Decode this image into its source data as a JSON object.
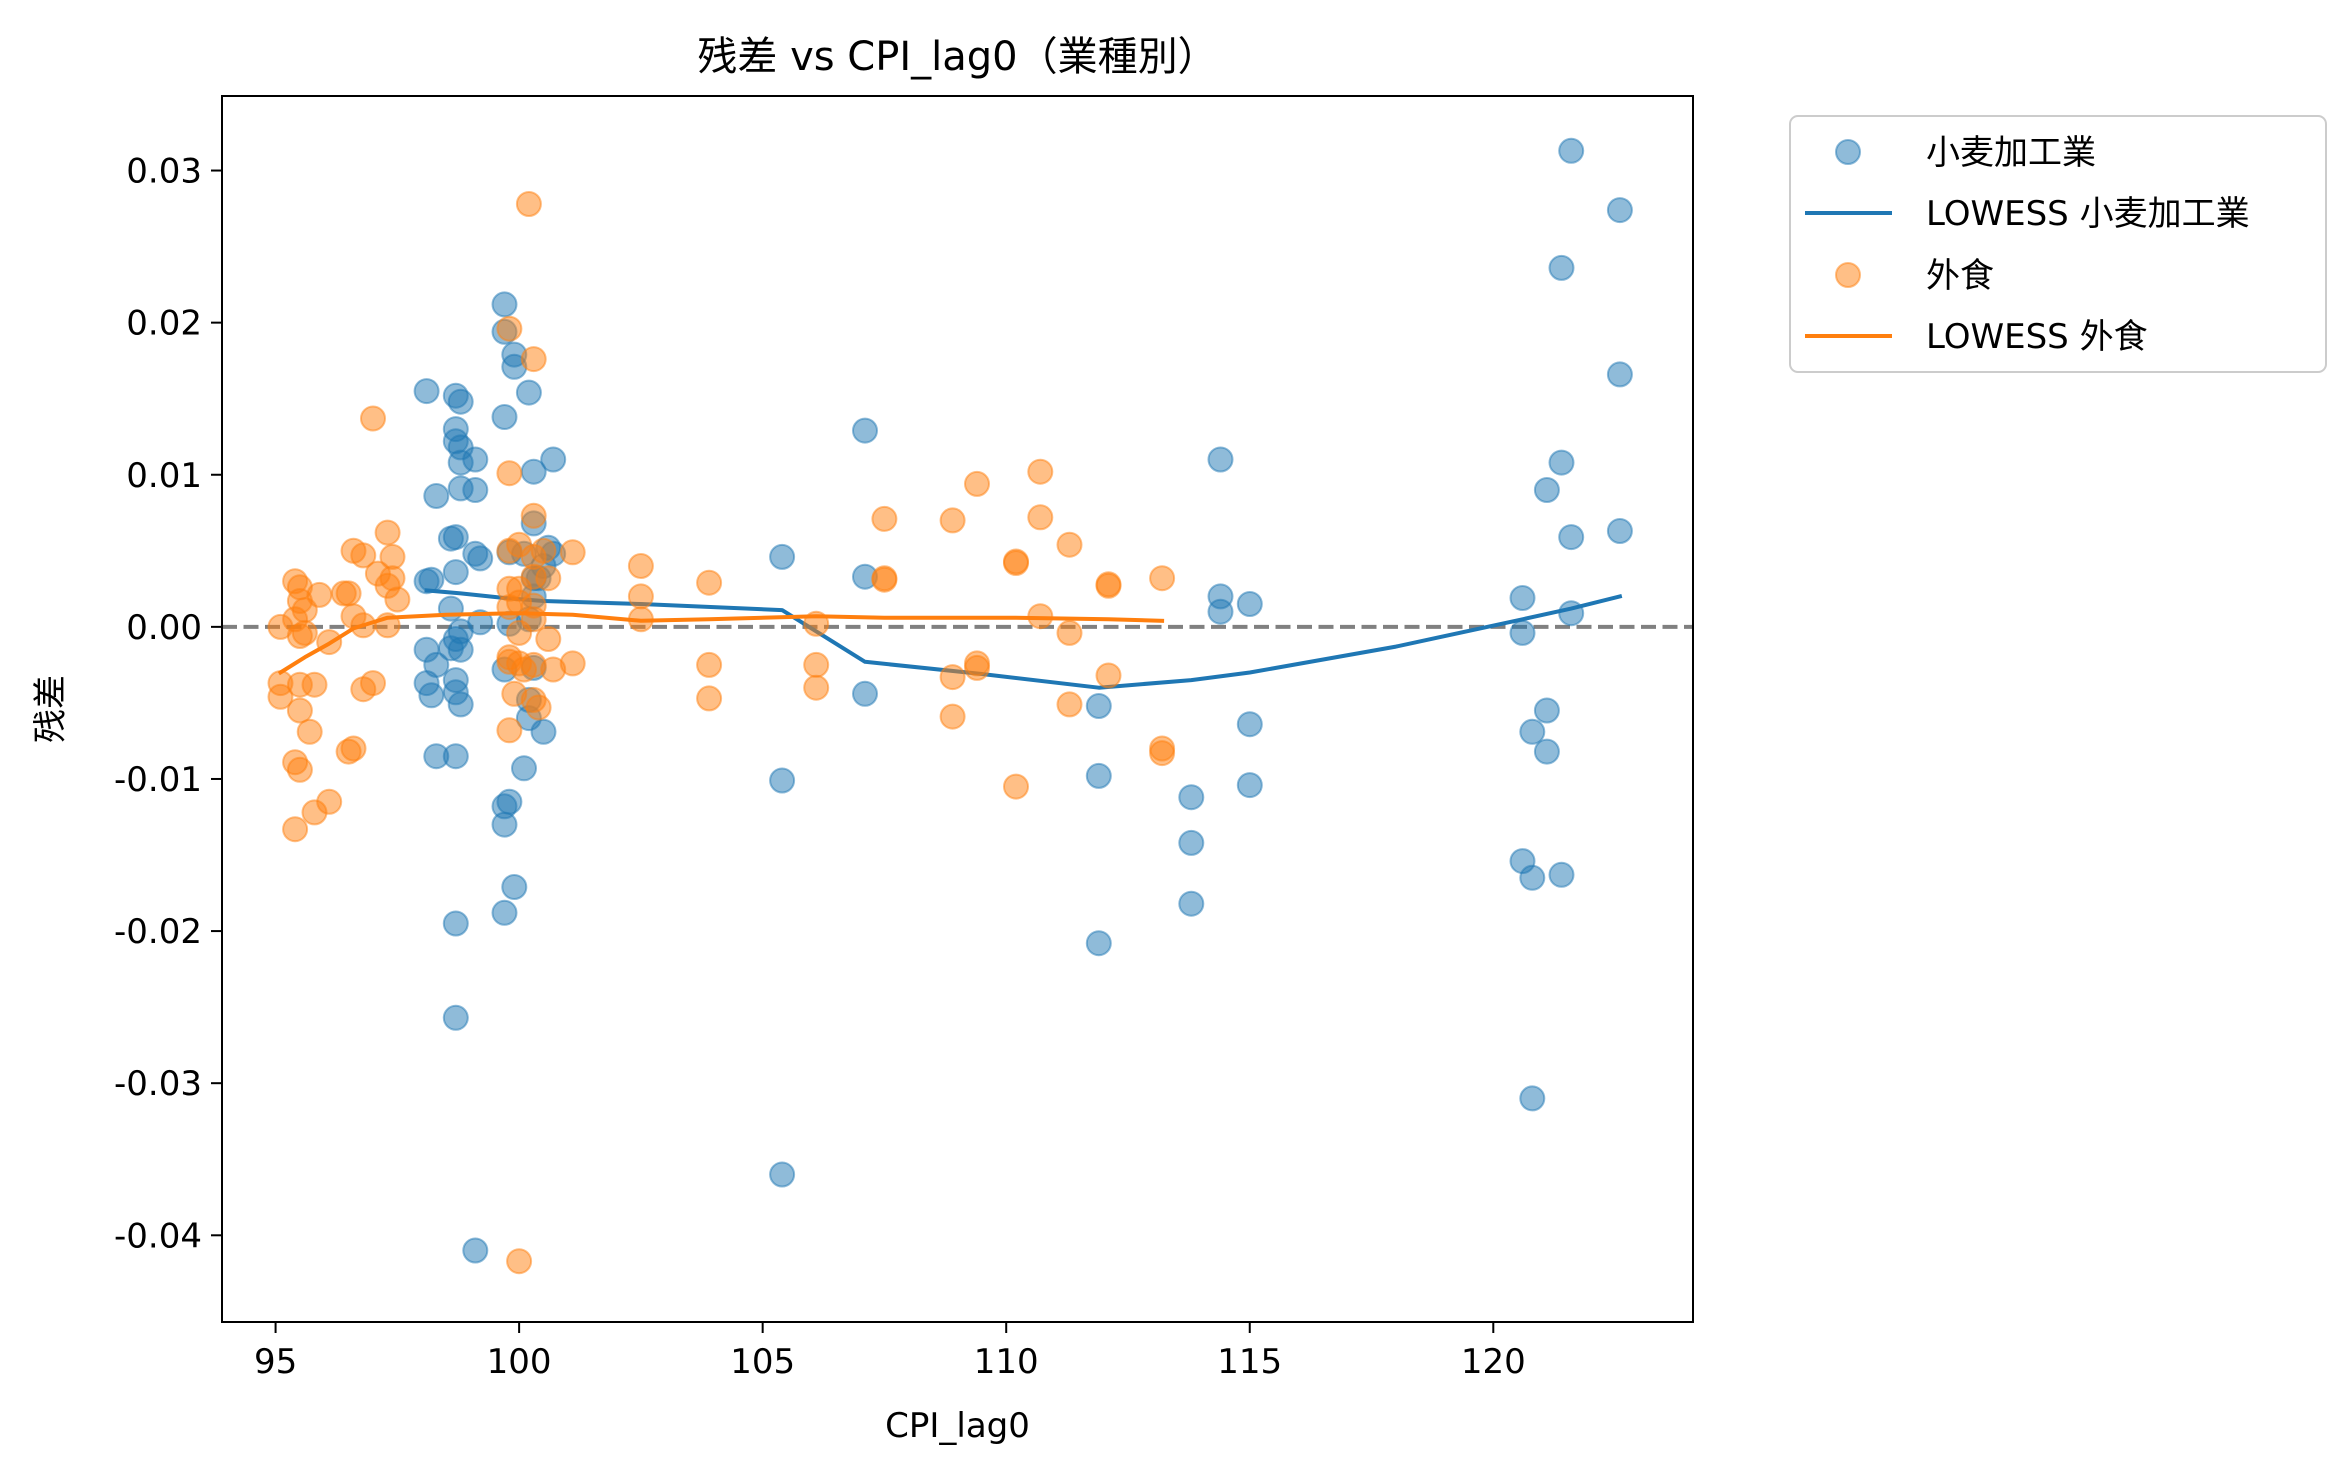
{
  "chart_data": {
    "type": "scatter",
    "title": "残差 vs CPI_lag0（業種別）",
    "xlabel": "CPI_lag0",
    "ylabel": "残差",
    "xlim": [
      93.9,
      124.1
    ],
    "ylim": [
      -0.0457,
      0.0349
    ],
    "xticks": [
      95,
      100,
      105,
      110,
      115,
      120
    ],
    "xtick_labels": [
      "95",
      "100",
      "105",
      "110",
      "115",
      "120"
    ],
    "yticks": [
      -0.04,
      -0.03,
      -0.02,
      -0.01,
      0.0,
      0.01,
      0.02,
      0.03
    ],
    "ytick_labels": [
      "-0.04",
      "-0.03",
      "-0.02",
      "-0.01",
      "0.00",
      "0.01",
      "0.02",
      "0.03"
    ],
    "reference_line": {
      "y": 0.0,
      "style": "dashed",
      "color": "#808080"
    },
    "legend": {
      "placement": "outside-top-right",
      "entries": [
        {
          "label": "小麦加工業",
          "kind": "marker",
          "color": "#1f77b4"
        },
        {
          "label": "LOWESS 小麦加工業",
          "kind": "line",
          "color": "#1f77b4"
        },
        {
          "label": "外食",
          "kind": "marker",
          "color": "#ff7f0e"
        },
        {
          "label": "LOWESS 外食",
          "kind": "line",
          "color": "#ff7f0e"
        }
      ]
    },
    "grid": false,
    "series": [
      {
        "name": "小麦加工業",
        "kind": "scatter",
        "color": "#1f77b4",
        "points": [
          [
            98.1,
            0.0155
          ],
          [
            98.3,
            0.0086
          ],
          [
            98.2,
            0.0031
          ],
          [
            98.1,
            0.003
          ],
          [
            98.1,
            -0.0015
          ],
          [
            98.3,
            -0.0025
          ],
          [
            98.1,
            -0.0037
          ],
          [
            98.2,
            -0.0045
          ],
          [
            98.3,
            -0.0085
          ],
          [
            98.6,
            0.0058
          ],
          [
            98.6,
            0.0012
          ],
          [
            98.6,
            -0.0014
          ],
          [
            98.7,
            0.0152
          ],
          [
            98.8,
            0.0148
          ],
          [
            98.7,
            0.013
          ],
          [
            98.7,
            0.0122
          ],
          [
            98.8,
            0.0118
          ],
          [
            98.8,
            0.0108
          ],
          [
            98.8,
            0.0091
          ],
          [
            98.7,
            0.0059
          ],
          [
            98.7,
            0.0036
          ],
          [
            98.8,
            -0.0003
          ],
          [
            98.7,
            -0.0008
          ],
          [
            98.8,
            -0.0015
          ],
          [
            98.7,
            -0.0035
          ],
          [
            98.7,
            -0.0043
          ],
          [
            98.8,
            -0.0051
          ],
          [
            98.7,
            -0.0085
          ],
          [
            98.7,
            -0.0195
          ],
          [
            98.7,
            -0.0257
          ],
          [
            99.1,
            0.011
          ],
          [
            99.1,
            0.009
          ],
          [
            99.1,
            0.0048
          ],
          [
            99.2,
            0.0045
          ],
          [
            99.2,
            0.0003
          ],
          [
            99.1,
            -0.041
          ],
          [
            99.7,
            0.0212
          ],
          [
            99.7,
            0.0194
          ],
          [
            99.7,
            0.0138
          ],
          [
            99.8,
            0.0049
          ],
          [
            99.8,
            0.0002
          ],
          [
            99.7,
            -0.0028
          ],
          [
            99.7,
            -0.0118
          ],
          [
            99.7,
            -0.013
          ],
          [
            99.7,
            -0.0188
          ],
          [
            99.8,
            -0.0115
          ],
          [
            99.9,
            -0.0171
          ],
          [
            99.9,
            0.0179
          ],
          [
            99.9,
            0.0171
          ],
          [
            100.2,
            0.0154
          ],
          [
            100.3,
            0.0102
          ],
          [
            100.3,
            0.0068
          ],
          [
            100.1,
            0.0048
          ],
          [
            100.3,
            0.0032
          ],
          [
            100.3,
            0.002
          ],
          [
            100.2,
            0.0005
          ],
          [
            100.3,
            -0.0027
          ],
          [
            100.2,
            -0.0048
          ],
          [
            100.2,
            -0.006
          ],
          [
            100.1,
            -0.0093
          ],
          [
            100.6,
            0.0052
          ],
          [
            100.7,
            0.0048
          ],
          [
            100.5,
            0.004
          ],
          [
            100.4,
            0.0032
          ],
          [
            100.7,
            0.011
          ],
          [
            100.5,
            -0.0069
          ],
          [
            105.4,
            0.0046
          ],
          [
            105.4,
            -0.0101
          ],
          [
            105.4,
            -0.036
          ],
          [
            107.1,
            0.0129
          ],
          [
            107.1,
            0.0033
          ],
          [
            107.1,
            -0.0044
          ],
          [
            111.9,
            -0.0052
          ],
          [
            111.9,
            -0.0098
          ],
          [
            111.9,
            -0.0208
          ],
          [
            113.8,
            -0.0112
          ],
          [
            113.8,
            -0.0142
          ],
          [
            113.8,
            -0.0182
          ],
          [
            114.4,
            0.011
          ],
          [
            114.4,
            0.002
          ],
          [
            114.4,
            0.001
          ],
          [
            115.0,
            0.0015
          ],
          [
            115.0,
            -0.0064
          ],
          [
            115.0,
            -0.0104
          ],
          [
            120.6,
            0.0019
          ],
          [
            120.6,
            -0.0004
          ],
          [
            120.6,
            -0.0154
          ],
          [
            120.8,
            -0.0069
          ],
          [
            120.8,
            -0.0165
          ],
          [
            120.8,
            -0.031
          ],
          [
            121.1,
            0.009
          ],
          [
            121.1,
            -0.0055
          ],
          [
            121.1,
            -0.0082
          ],
          [
            121.4,
            0.0236
          ],
          [
            121.4,
            0.0108
          ],
          [
            121.4,
            -0.0163
          ],
          [
            121.6,
            0.0313
          ],
          [
            121.6,
            0.0059
          ],
          [
            121.6,
            0.0009
          ],
          [
            122.6,
            0.0274
          ],
          [
            122.6,
            0.0166
          ],
          [
            122.6,
            0.0063
          ]
        ]
      },
      {
        "name": "LOWESS 小麦加工業",
        "kind": "line",
        "color": "#1f77b4",
        "points": [
          [
            98.1,
            0.0024
          ],
          [
            98.8,
            0.0022
          ],
          [
            99.7,
            0.0019
          ],
          [
            100.5,
            0.0017
          ],
          [
            102.5,
            0.0015
          ],
          [
            105.4,
            0.0011
          ],
          [
            107.1,
            -0.0023
          ],
          [
            109.5,
            -0.0031
          ],
          [
            111.9,
            -0.004
          ],
          [
            113.8,
            -0.0035
          ],
          [
            115.0,
            -0.003
          ],
          [
            118.0,
            -0.0013
          ],
          [
            120.6,
            0.0005
          ],
          [
            121.6,
            0.0012
          ],
          [
            122.6,
            0.002
          ]
        ]
      },
      {
        "name": "外食",
        "kind": "scatter",
        "color": "#ff7f0e",
        "points": [
          [
            95.1,
            0.0
          ],
          [
            95.1,
            -0.0037
          ],
          [
            95.1,
            -0.0046
          ],
          [
            95.4,
            0.003
          ],
          [
            95.5,
            0.0026
          ],
          [
            95.5,
            0.0017
          ],
          [
            95.4,
            0.0005
          ],
          [
            95.5,
            -0.0006
          ],
          [
            95.5,
            -0.0038
          ],
          [
            95.5,
            -0.0055
          ],
          [
            95.4,
            -0.0089
          ],
          [
            95.5,
            -0.0094
          ],
          [
            95.4,
            -0.0133
          ],
          [
            95.6,
            0.0011
          ],
          [
            95.6,
            -0.0004
          ],
          [
            95.7,
            -0.0069
          ],
          [
            95.8,
            -0.0038
          ],
          [
            95.8,
            -0.0122
          ],
          [
            95.9,
            0.0021
          ],
          [
            96.1,
            -0.001
          ],
          [
            96.1,
            -0.0115
          ],
          [
            96.4,
            0.0022
          ],
          [
            96.5,
            0.0022
          ],
          [
            96.5,
            -0.0082
          ],
          [
            96.6,
            -0.008
          ],
          [
            96.6,
            0.005
          ],
          [
            96.6,
            0.0007
          ],
          [
            96.8,
            0.0047
          ],
          [
            96.8,
            0.0001
          ],
          [
            96.8,
            -0.0041
          ],
          [
            97.0,
            0.0137
          ],
          [
            97.0,
            -0.0037
          ],
          [
            97.1,
            0.0035
          ],
          [
            97.3,
            0.0062
          ],
          [
            97.3,
            0.0027
          ],
          [
            97.3,
            0.0001
          ],
          [
            97.4,
            0.0046
          ],
          [
            97.4,
            0.0032
          ],
          [
            97.5,
            0.0018
          ],
          [
            99.8,
            0.0196
          ],
          [
            99.8,
            0.0101
          ],
          [
            99.8,
            0.005
          ],
          [
            99.8,
            0.0025
          ],
          [
            99.8,
            0.0013
          ],
          [
            99.8,
            -0.002
          ],
          [
            99.8,
            -0.0023
          ],
          [
            99.8,
            -0.0068
          ],
          [
            99.9,
            -0.0044
          ],
          [
            100.0,
            -0.0417
          ],
          [
            100.0,
            0.0054
          ],
          [
            100.0,
            0.0025
          ],
          [
            100.0,
            0.0016
          ],
          [
            100.0,
            -0.0004
          ],
          [
            100.0,
            -0.0024
          ],
          [
            100.1,
            -0.0028
          ],
          [
            100.2,
            0.0278
          ],
          [
            100.3,
            0.0176
          ],
          [
            100.3,
            0.0073
          ],
          [
            100.3,
            0.0046
          ],
          [
            100.3,
            0.0033
          ],
          [
            100.3,
            0.0014
          ],
          [
            100.3,
            0.0005
          ],
          [
            100.3,
            -0.0025
          ],
          [
            100.3,
            -0.0048
          ],
          [
            100.4,
            -0.0053
          ],
          [
            100.5,
            0.005
          ],
          [
            100.6,
            0.0032
          ],
          [
            100.6,
            -0.0008
          ],
          [
            100.7,
            -0.0028
          ],
          [
            101.1,
            0.0049
          ],
          [
            101.1,
            -0.0024
          ],
          [
            102.5,
            0.004
          ],
          [
            102.5,
            0.002
          ],
          [
            102.5,
            0.0005
          ],
          [
            103.9,
            0.0029
          ],
          [
            103.9,
            -0.0025
          ],
          [
            103.9,
            -0.0047
          ],
          [
            106.1,
            0.0002
          ],
          [
            106.1,
            -0.0025
          ],
          [
            106.1,
            -0.004
          ],
          [
            107.5,
            0.0071
          ],
          [
            107.5,
            0.0032
          ],
          [
            107.5,
            0.0031
          ],
          [
            108.9,
            0.007
          ],
          [
            108.9,
            -0.0033
          ],
          [
            108.9,
            -0.0059
          ],
          [
            109.4,
            0.0094
          ],
          [
            109.4,
            -0.0024
          ],
          [
            109.4,
            -0.0027
          ],
          [
            110.2,
            0.0043
          ],
          [
            110.2,
            0.0042
          ],
          [
            110.2,
            -0.0105
          ],
          [
            110.7,
            0.0102
          ],
          [
            110.7,
            0.0072
          ],
          [
            110.7,
            0.0007
          ],
          [
            111.3,
            0.0054
          ],
          [
            111.3,
            -0.0004
          ],
          [
            111.3,
            -0.0051
          ],
          [
            112.1,
            0.0028
          ],
          [
            112.1,
            0.0027
          ],
          [
            112.1,
            -0.0032
          ],
          [
            113.2,
            0.0032
          ],
          [
            113.2,
            -0.008
          ],
          [
            113.2,
            -0.0083
          ]
        ]
      },
      {
        "name": "LOWESS 外食",
        "kind": "line",
        "color": "#ff7f0e",
        "points": [
          [
            95.1,
            -0.003
          ],
          [
            95.6,
            -0.002
          ],
          [
            96.1,
            -0.0011
          ],
          [
            96.6,
            -0.0001
          ],
          [
            97.3,
            0.0006
          ],
          [
            98.5,
            0.0008
          ],
          [
            100.0,
            0.0009
          ],
          [
            101.1,
            0.0008
          ],
          [
            102.5,
            0.0004
          ],
          [
            103.9,
            0.0005
          ],
          [
            106.1,
            0.0007
          ],
          [
            107.5,
            0.0006
          ],
          [
            110.2,
            0.0006
          ],
          [
            112.1,
            0.0005
          ],
          [
            113.2,
            0.0004
          ]
        ]
      }
    ]
  }
}
